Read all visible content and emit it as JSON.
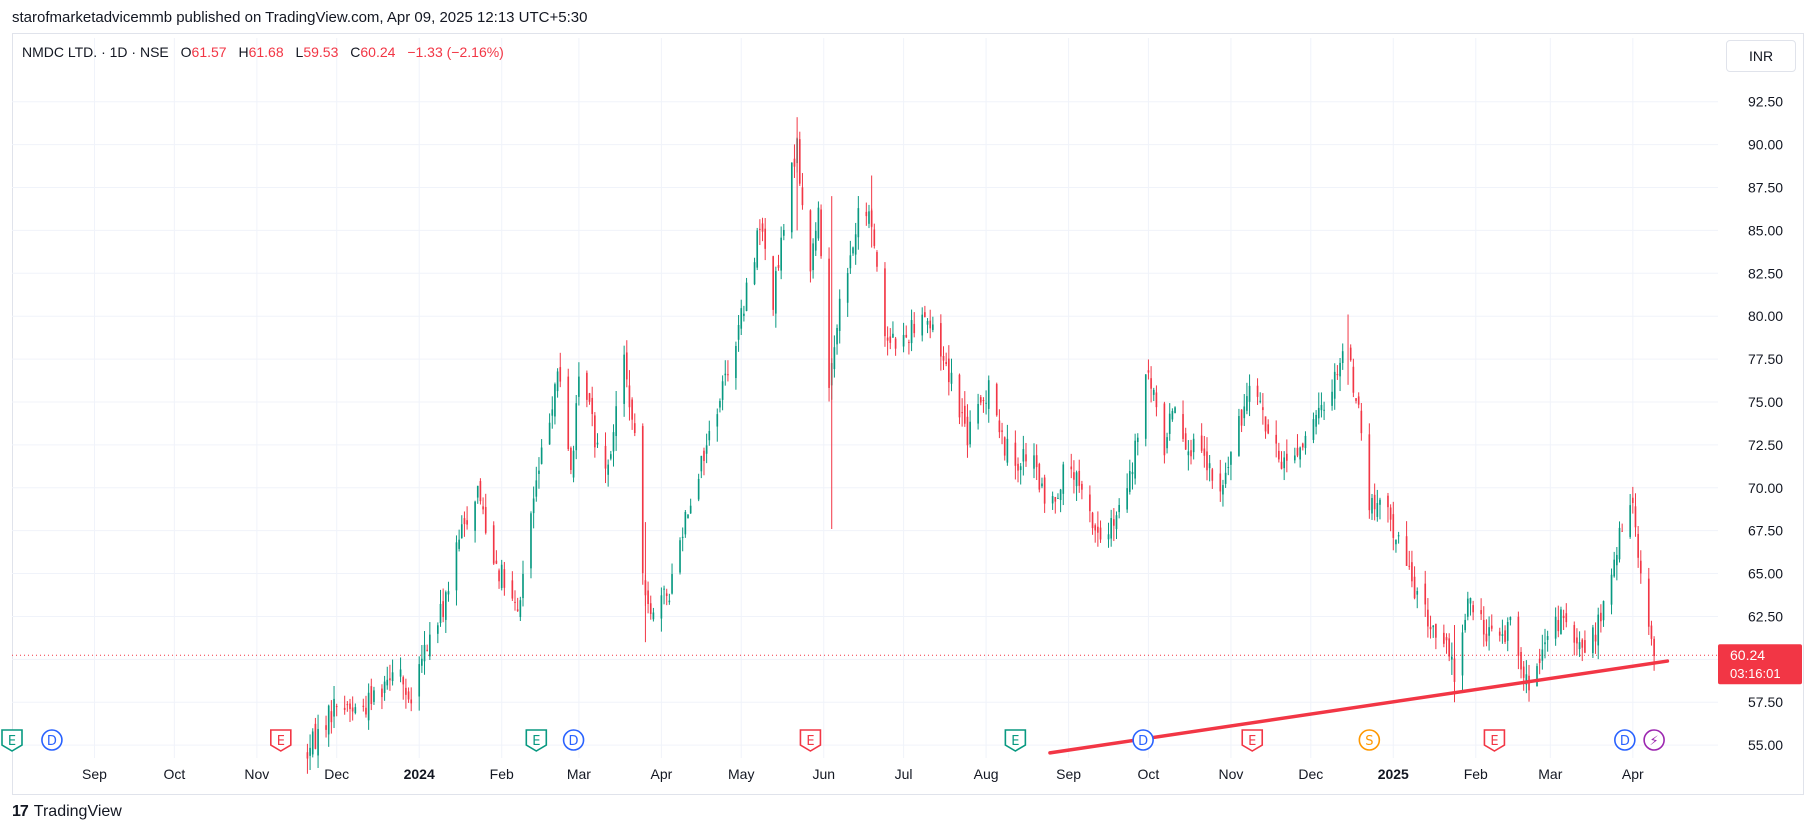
{
  "header": {
    "published_text": "starofmarketadvicemmb published on TradingView.com, Apr 09, 2025 12:13 UTC+5:30"
  },
  "legend": {
    "symbol": "NMDC LTD. · 1D · NSE",
    "open_label": "O",
    "open": "61.57",
    "high_label": "H",
    "high": "61.68",
    "low_label": "L",
    "low": "59.53",
    "close_label": "C",
    "close": "60.24",
    "change": "−1.33 (−2.16%)"
  },
  "currency": "INR",
  "price_badge": {
    "price": "60.24",
    "countdown": "03:16:01"
  },
  "footer": {
    "brand": "TradingView",
    "mark": "17"
  },
  "colors": {
    "up": "#089981",
    "down": "#f23645",
    "grid": "#f0f3fa",
    "trendline": "#f23645",
    "price_line": "#f23645",
    "earnings": "#089981",
    "earnings_miss": "#f23645",
    "dividend": "#2962ff",
    "split": "#ff9800",
    "news": "#9c27b0"
  },
  "chart_data": {
    "type": "candlestick",
    "title": "",
    "xlabel": "",
    "ylabel": "",
    "ylim": [
      54.25,
      94.0
    ],
    "x_range": [
      "2023-08-01",
      "2025-04-30"
    ],
    "grid": true,
    "y_ticks": [
      "92.50",
      "90.00",
      "87.50",
      "85.00",
      "82.50",
      "80.00",
      "77.50",
      "75.00",
      "72.50",
      "70.00",
      "67.50",
      "65.00",
      "62.50",
      "60.00",
      "57.50",
      "55.00"
    ],
    "x_ticks": [
      {
        "date": "2023-09-01",
        "label": "Sep",
        "bold": false
      },
      {
        "date": "2023-10-01",
        "label": "Oct",
        "bold": false
      },
      {
        "date": "2023-11-01",
        "label": "Nov",
        "bold": false
      },
      {
        "date": "2023-12-01",
        "label": "Dec",
        "bold": false
      },
      {
        "date": "2024-01-01",
        "label": "2024",
        "bold": true
      },
      {
        "date": "2024-02-01",
        "label": "Feb",
        "bold": false
      },
      {
        "date": "2024-03-01",
        "label": "Mar",
        "bold": false
      },
      {
        "date": "2024-04-01",
        "label": "Apr",
        "bold": false
      },
      {
        "date": "2024-05-01",
        "label": "May",
        "bold": false
      },
      {
        "date": "2024-06-01",
        "label": "Jun",
        "bold": false
      },
      {
        "date": "2024-07-01",
        "label": "Jul",
        "bold": false
      },
      {
        "date": "2024-08-01",
        "label": "Aug",
        "bold": false
      },
      {
        "date": "2024-09-01",
        "label": "Sep",
        "bold": false
      },
      {
        "date": "2024-10-01",
        "label": "Oct",
        "bold": false
      },
      {
        "date": "2024-11-01",
        "label": "Nov",
        "bold": false
      },
      {
        "date": "2024-12-01",
        "label": "Dec",
        "bold": false
      },
      {
        "date": "2025-01-01",
        "label": "2025",
        "bold": true
      },
      {
        "date": "2025-02-01",
        "label": "Feb",
        "bold": false
      },
      {
        "date": "2025-03-01",
        "label": "Mar",
        "bold": false
      },
      {
        "date": "2025-04-01",
        "label": "Apr",
        "bold": false
      }
    ],
    "last_price": 60.24,
    "price_path": [
      [
        "2023-11-20",
        54.5
      ],
      [
        "2023-11-25",
        56.0
      ],
      [
        "2023-12-01",
        57.5
      ],
      [
        "2023-12-10",
        57.0
      ],
      [
        "2023-12-18",
        58.5
      ],
      [
        "2023-12-24",
        60.3
      ],
      [
        "2023-12-28",
        57.0
      ],
      [
        "2024-01-03",
        60.5
      ],
      [
        "2024-01-10",
        63.0
      ],
      [
        "2024-01-17",
        67.5
      ],
      [
        "2024-01-23",
        70.0
      ],
      [
        "2024-01-28",
        66.5
      ],
      [
        "2024-02-03",
        64.0
      ],
      [
        "2024-02-07",
        62.5
      ],
      [
        "2024-02-12",
        68.5
      ],
      [
        "2024-02-18",
        73.5
      ],
      [
        "2024-02-22",
        77.0
      ],
      [
        "2024-02-27",
        71.0
      ],
      [
        "2024-03-02",
        77.5
      ],
      [
        "2024-03-07",
        73.0
      ],
      [
        "2024-03-12",
        71.5
      ],
      [
        "2024-03-18",
        77.5
      ],
      [
        "2024-03-22",
        72.5
      ],
      [
        "2024-03-25",
        65.0
      ],
      [
        "2024-03-29",
        62.5
      ],
      [
        "2024-04-04",
        64.0
      ],
      [
        "2024-04-10",
        68.5
      ],
      [
        "2024-04-18",
        72.5
      ],
      [
        "2024-04-25",
        76.5
      ],
      [
        "2024-05-02",
        80.5
      ],
      [
        "2024-05-08",
        85.5
      ],
      [
        "2024-05-13",
        81.0
      ],
      [
        "2024-05-18",
        86.0
      ],
      [
        "2024-05-22",
        90.5
      ],
      [
        "2024-05-24",
        86.0
      ],
      [
        "2024-05-27",
        83.0
      ],
      [
        "2024-05-30",
        86.0
      ],
      [
        "2024-06-01",
        81.0
      ],
      [
        "2024-06-03",
        76.0
      ],
      [
        "2024-06-06",
        80.0
      ],
      [
        "2024-06-10",
        82.5
      ],
      [
        "2024-06-15",
        86.5
      ],
      [
        "2024-06-19",
        85.5
      ],
      [
        "2024-06-24",
        79.0
      ],
      [
        "2024-07-01",
        78.5
      ],
      [
        "2024-07-08",
        80.5
      ],
      [
        "2024-07-15",
        78.0
      ],
      [
        "2024-07-20",
        76.0
      ],
      [
        "2024-07-25",
        73.0
      ],
      [
        "2024-08-01",
        75.5
      ],
      [
        "2024-08-03",
        77.5
      ],
      [
        "2024-08-06",
        73.0
      ],
      [
        "2024-08-12",
        71.5
      ],
      [
        "2024-08-18",
        72.0
      ],
      [
        "2024-08-24",
        68.5
      ],
      [
        "2024-09-01",
        71.5
      ],
      [
        "2024-09-07",
        69.0
      ],
      [
        "2024-09-13",
        67.0
      ],
      [
        "2024-09-19",
        68.0
      ],
      [
        "2024-09-25",
        71.0
      ],
      [
        "2024-09-30",
        76.5
      ],
      [
        "2024-10-03",
        75.5
      ],
      [
        "2024-10-06",
        71.5
      ],
      [
        "2024-10-10",
        75.0
      ],
      [
        "2024-10-16",
        72.5
      ],
      [
        "2024-10-22",
        71.5
      ],
      [
        "2024-10-28",
        69.5
      ],
      [
        "2024-11-01",
        72.0
      ],
      [
        "2024-11-05",
        74.0
      ],
      [
        "2024-11-09",
        77.5
      ],
      [
        "2024-11-14",
        73.5
      ],
      [
        "2024-11-19",
        71.5
      ],
      [
        "2024-11-25",
        72.0
      ],
      [
        "2024-12-02",
        73.5
      ],
      [
        "2024-12-09",
        76.0
      ],
      [
        "2024-12-14",
        78.5
      ],
      [
        "2024-12-19",
        74.5
      ],
      [
        "2024-12-23",
        69.0
      ],
      [
        "2024-12-30",
        68.5
      ],
      [
        "2025-01-06",
        65.5
      ],
      [
        "2025-01-13",
        62.5
      ],
      [
        "2025-01-20",
        61.0
      ],
      [
        "2025-01-24",
        59.0
      ],
      [
        "2025-01-29",
        63.5
      ],
      [
        "2025-02-03",
        62.0
      ],
      [
        "2025-02-10",
        61.0
      ],
      [
        "2025-02-15",
        62.5
      ],
      [
        "2025-02-20",
        58.5
      ],
      [
        "2025-02-25",
        59.5
      ],
      [
        "2025-03-01",
        61.5
      ],
      [
        "2025-03-05",
        62.5
      ],
      [
        "2025-03-11",
        60.5
      ],
      [
        "2025-03-18",
        61.5
      ],
      [
        "2025-03-23",
        64.0
      ],
      [
        "2025-03-27",
        67.0
      ],
      [
        "2025-03-30",
        68.5
      ],
      [
        "2025-04-01",
        69.5
      ],
      [
        "2025-04-04",
        65.0
      ],
      [
        "2025-04-06",
        61.5
      ],
      [
        "2025-04-07",
        62.0
      ],
      [
        "2025-04-09",
        60.24
      ]
    ],
    "spikes": [
      {
        "date": "2024-05-22",
        "high": 91.6,
        "low": 85.0
      },
      {
        "date": "2024-06-04",
        "high": 87.0,
        "low": 67.6
      },
      {
        "date": "2024-06-19",
        "high": 88.2,
        "low": 84.0
      },
      {
        "date": "2024-03-26",
        "high": 68.0,
        "low": 61.0
      },
      {
        "date": "2024-12-15",
        "high": 80.1,
        "low": 76.0
      },
      {
        "date": "2025-01-24",
        "high": 62.0,
        "low": 57.5
      }
    ],
    "trendline": {
      "from": [
        "2024-08-25",
        54.55
      ],
      "to": [
        "2025-04-14",
        59.9
      ]
    },
    "event_markers": [
      {
        "date": "2023-08-01",
        "kind": "E",
        "type": "earnings"
      },
      {
        "date": "2023-08-16",
        "kind": "D",
        "type": "dividend"
      },
      {
        "date": "2023-11-10",
        "kind": "E",
        "type": "earnings_miss"
      },
      {
        "date": "2024-02-14",
        "kind": "E",
        "type": "earnings"
      },
      {
        "date": "2024-02-28",
        "kind": "D",
        "type": "dividend"
      },
      {
        "date": "2024-05-27",
        "kind": "E",
        "type": "earnings_miss"
      },
      {
        "date": "2024-08-12",
        "kind": "E",
        "type": "earnings"
      },
      {
        "date": "2024-09-29",
        "kind": "D",
        "type": "dividend"
      },
      {
        "date": "2024-11-09",
        "kind": "E",
        "type": "earnings_miss"
      },
      {
        "date": "2024-12-23",
        "kind": "S",
        "type": "split"
      },
      {
        "date": "2025-02-08",
        "kind": "E",
        "type": "earnings_miss"
      },
      {
        "date": "2025-03-29",
        "kind": "D",
        "type": "dividend"
      },
      {
        "date": "2025-04-09",
        "kind": "⚡",
        "type": "news"
      }
    ]
  }
}
